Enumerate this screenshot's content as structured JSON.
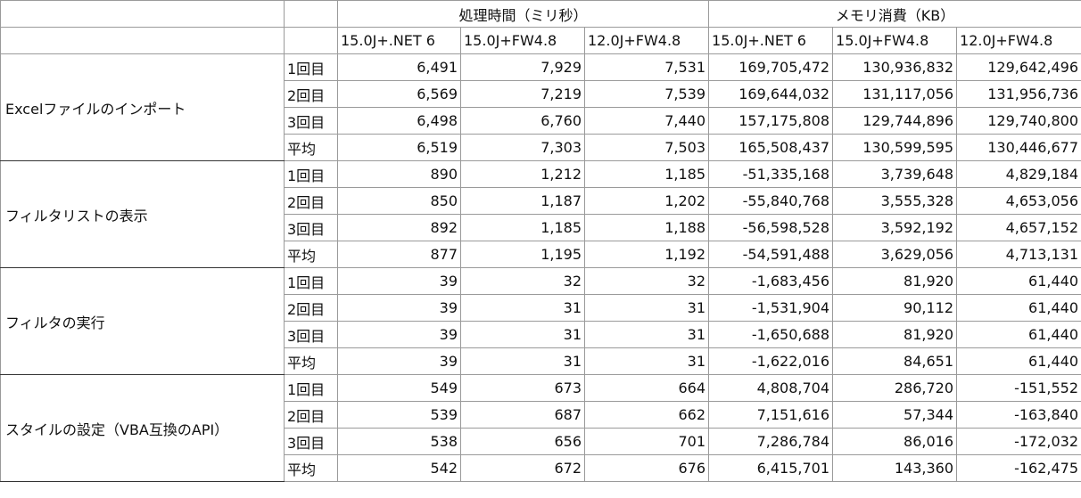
{
  "header": {
    "groups": [
      "処理時間（ミリ秒）",
      "メモリ消費（KB）"
    ],
    "columns": [
      "15.0J+.NET 6",
      "15.0J+FW4.8",
      "12.0J+FW4.8",
      "15.0J+.NET 6",
      "15.0J+FW4.8",
      "12.0J+FW4.8"
    ]
  },
  "sections": [
    {
      "label": "Excelファイルのインポート",
      "rows": [
        {
          "run": "1回目",
          "values": [
            "6,491",
            "7,929",
            "7,531",
            "169,705,472",
            "130,936,832",
            "129,642,496"
          ]
        },
        {
          "run": "2回目",
          "values": [
            "6,569",
            "7,219",
            "7,539",
            "169,644,032",
            "131,117,056",
            "131,956,736"
          ]
        },
        {
          "run": "3回目",
          "values": [
            "6,498",
            "6,760",
            "7,440",
            "157,175,808",
            "129,744,896",
            "129,740,800"
          ]
        },
        {
          "run": "平均",
          "values": [
            "6,519",
            "7,303",
            "7,503",
            "165,508,437",
            "130,599,595",
            "130,446,677"
          ]
        }
      ]
    },
    {
      "label": "フィルタリストの表示",
      "rows": [
        {
          "run": "1回目",
          "values": [
            "890",
            "1,212",
            "1,185",
            "-51,335,168",
            "3,739,648",
            "4,829,184"
          ]
        },
        {
          "run": "2回目",
          "values": [
            "850",
            "1,187",
            "1,202",
            "-55,840,768",
            "3,555,328",
            "4,653,056"
          ]
        },
        {
          "run": "3回目",
          "values": [
            "892",
            "1,185",
            "1,188",
            "-56,598,528",
            "3,592,192",
            "4,657,152"
          ]
        },
        {
          "run": "平均",
          "values": [
            "877",
            "1,195",
            "1,192",
            "-54,591,488",
            "3,629,056",
            "4,713,131"
          ]
        }
      ]
    },
    {
      "label": "フィルタの実行",
      "rows": [
        {
          "run": "1回目",
          "values": [
            "39",
            "32",
            "32",
            "-1,683,456",
            "81,920",
            "61,440"
          ]
        },
        {
          "run": "2回目",
          "values": [
            "39",
            "31",
            "31",
            "-1,531,904",
            "90,112",
            "61,440"
          ]
        },
        {
          "run": "3回目",
          "values": [
            "39",
            "31",
            "31",
            "-1,650,688",
            "81,920",
            "61,440"
          ]
        },
        {
          "run": "平均",
          "values": [
            "39",
            "31",
            "31",
            "-1,622,016",
            "84,651",
            "61,440"
          ]
        }
      ]
    },
    {
      "label": "スタイルの設定（VBA互換のAPI）",
      "rows": [
        {
          "run": "1回目",
          "values": [
            "549",
            "673",
            "664",
            "4,808,704",
            "286,720",
            "-151,552"
          ]
        },
        {
          "run": "2回目",
          "values": [
            "539",
            "687",
            "662",
            "7,151,616",
            "57,344",
            "-163,840"
          ]
        },
        {
          "run": "3回目",
          "values": [
            "538",
            "656",
            "701",
            "7,286,784",
            "86,016",
            "-172,032"
          ]
        },
        {
          "run": "平均",
          "values": [
            "542",
            "672",
            "676",
            "6,415,701",
            "143,360",
            "-162,475"
          ]
        }
      ]
    }
  ]
}
